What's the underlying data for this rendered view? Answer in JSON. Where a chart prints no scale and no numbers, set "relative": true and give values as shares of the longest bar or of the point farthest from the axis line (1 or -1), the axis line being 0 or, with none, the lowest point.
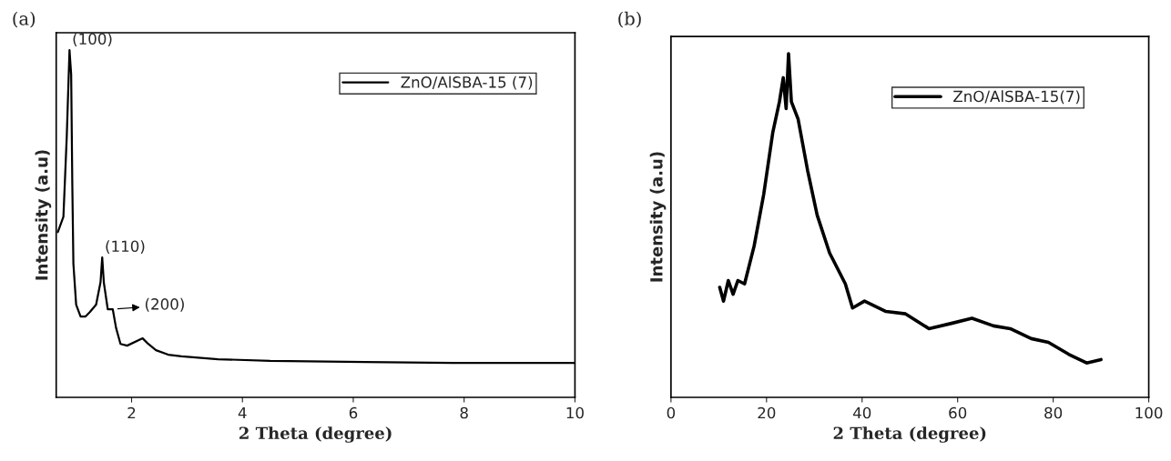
{
  "chart_data": [
    {
      "type": "line",
      "relative": true,
      "xlabel": "2 Theta (degree)",
      "ylabel": "Intensity (a.u)",
      "xlim": [
        0.64,
        10
      ],
      "xticks": [
        2,
        4,
        6,
        8,
        10
      ],
      "tick_labels": "x",
      "legend": "top right",
      "grid": false,
      "series": [
        {
          "name": "ZnO/AlSBA-15 (7)",
          "color": "#000000",
          "x": [
            0.67,
            0.77,
            0.83,
            0.88,
            0.91,
            0.93,
            0.95,
            1.0,
            1.08,
            1.17,
            1.25,
            1.36,
            1.44,
            1.47,
            1.5,
            1.57,
            1.66,
            1.72,
            1.8,
            1.92,
            2.2,
            2.3,
            2.44,
            2.66,
            2.9,
            3.56,
            4.5,
            6.2,
            7.8,
            10
          ],
          "values": [
            0.476,
            0.52,
            0.75,
            1.0,
            0.93,
            0.62,
            0.385,
            0.267,
            0.233,
            0.233,
            0.246,
            0.267,
            0.332,
            0.403,
            0.33,
            0.254,
            0.254,
            0.2,
            0.154,
            0.149,
            0.17,
            0.154,
            0.136,
            0.123,
            0.118,
            0.11,
            0.105,
            0.102,
            0.0995,
            0.0995
          ]
        }
      ],
      "annotations": [
        "(a)",
        {
          "text": "(100)",
          "x": 0.88,
          "y": 1.0
        },
        {
          "text": "(110)",
          "x": 1.47,
          "y": 0.403
        },
        {
          "text": "(200)",
          "x": 1.66,
          "y": 0.254
        }
      ]
    },
    {
      "type": "line",
      "relative": true,
      "xlabel": "2 Theta (degree)",
      "ylabel": "Intensity (a.u)",
      "xlim": [
        0,
        100
      ],
      "xticks": [
        0,
        20,
        40,
        60,
        80,
        100
      ],
      "tick_labels": "x",
      "legend": "top right",
      "grid": false,
      "series": [
        {
          "name": "ZnO/AlSBA-15(7)",
          "color": "#000000",
          "x": [
            10.2,
            11,
            12,
            13,
            14,
            15.4,
            17.4,
            19.4,
            21.3,
            22.7,
            23.5,
            24.1,
            24.6,
            25.2,
            26.6,
            28.6,
            30.6,
            33.2,
            36.5,
            38,
            40.5,
            45,
            49.1,
            54,
            58.9,
            63,
            67.5,
            71,
            75.4,
            79,
            83.3,
            87,
            90
          ],
          "values": [
            0.32,
            0.28,
            0.34,
            0.3,
            0.34,
            0.33,
            0.44,
            0.59,
            0.77,
            0.86,
            0.93,
            0.84,
            1.0,
            0.86,
            0.81,
            0.66,
            0.53,
            0.42,
            0.33,
            0.26,
            0.28,
            0.25,
            0.243,
            0.2,
            0.216,
            0.23,
            0.208,
            0.2,
            0.171,
            0.16,
            0.125,
            0.1,
            0.11
          ]
        }
      ],
      "annotations": [
        "(b)"
      ]
    }
  ]
}
